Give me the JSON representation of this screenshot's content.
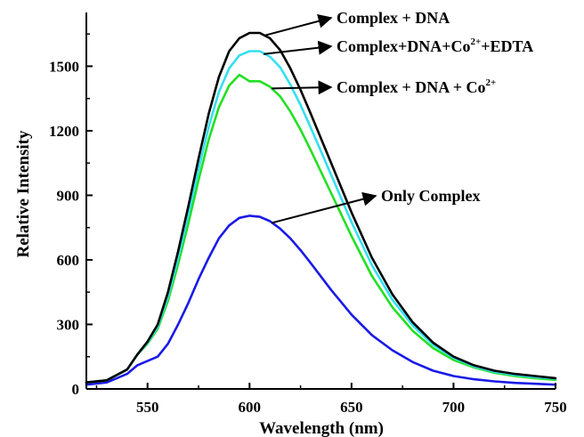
{
  "chart_data": {
    "type": "line",
    "xlabel": "Wavelength (nm)",
    "ylabel": "Relative Intensity",
    "xlim": [
      520,
      750
    ],
    "ylim": [
      0,
      1750
    ],
    "xticks": [
      550,
      600,
      650,
      700,
      750
    ],
    "yticks": [
      0,
      300,
      600,
      900,
      1200,
      1500
    ],
    "grid": false,
    "series": [
      {
        "name": "Complex + DNA",
        "color": "#000000",
        "x": [
          520,
          530,
          540,
          545,
          550,
          555,
          560,
          565,
          570,
          575,
          580,
          585,
          590,
          595,
          600,
          605,
          610,
          615,
          620,
          625,
          630,
          640,
          650,
          660,
          670,
          680,
          690,
          700,
          710,
          720,
          730,
          740,
          750
        ],
        "y": [
          30,
          40,
          90,
          160,
          220,
          300,
          450,
          640,
          850,
          1070,
          1280,
          1450,
          1570,
          1630,
          1655,
          1655,
          1630,
          1575,
          1490,
          1390,
          1280,
          1050,
          820,
          610,
          440,
          310,
          215,
          150,
          110,
          85,
          70,
          60,
          50
        ]
      },
      {
        "name": "Complex+DNA+Co2++EDTA",
        "color": "#33E0F0",
        "x": [
          520,
          530,
          540,
          545,
          550,
          555,
          560,
          565,
          570,
          575,
          580,
          585,
          590,
          595,
          600,
          605,
          610,
          615,
          620,
          625,
          630,
          640,
          650,
          660,
          670,
          680,
          690,
          700,
          710,
          720,
          730,
          740,
          750
        ],
        "y": [
          30,
          40,
          90,
          160,
          215,
          290,
          430,
          610,
          810,
          1020,
          1220,
          1380,
          1490,
          1550,
          1570,
          1570,
          1545,
          1495,
          1415,
          1320,
          1215,
          995,
          775,
          575,
          415,
          295,
          205,
          145,
          105,
          80,
          65,
          55,
          48
        ]
      },
      {
        "name": "Complex + DNA + Co2+",
        "color": "#22E022",
        "x": [
          520,
          530,
          540,
          545,
          550,
          555,
          560,
          565,
          570,
          575,
          580,
          585,
          590,
          595,
          600,
          605,
          610,
          615,
          620,
          625,
          630,
          640,
          650,
          660,
          670,
          680,
          690,
          700,
          710,
          720,
          730,
          740,
          750
        ],
        "y": [
          30,
          40,
          90,
          160,
          210,
          280,
          410,
          580,
          770,
          970,
          1160,
          1310,
          1410,
          1460,
          1430,
          1430,
          1405,
          1360,
          1290,
          1205,
          1110,
          910,
          710,
          525,
          380,
          270,
          190,
          135,
          100,
          75,
          60,
          50,
          42
        ]
      },
      {
        "name": "Only Complex",
        "color": "#1A1AE6",
        "x": [
          520,
          530,
          540,
          545,
          550,
          555,
          560,
          565,
          570,
          575,
          580,
          585,
          590,
          595,
          600,
          605,
          610,
          615,
          620,
          625,
          630,
          640,
          650,
          660,
          670,
          680,
          690,
          700,
          710,
          720,
          730,
          740,
          750
        ],
        "y": [
          20,
          30,
          70,
          110,
          130,
          150,
          210,
          300,
          400,
          510,
          610,
          700,
          760,
          795,
          805,
          800,
          780,
          745,
          700,
          645,
          585,
          460,
          345,
          250,
          180,
          125,
          85,
          60,
          45,
          35,
          28,
          24,
          20
        ]
      }
    ],
    "annotations": [
      {
        "text": "Complex + DNA",
        "sup": "",
        "tail": "",
        "series": 0,
        "at_x": 606
      },
      {
        "text": "Complex+DNA+Co",
        "sup": "2+",
        "tail": "+EDTA",
        "series": 1,
        "at_x": 606
      },
      {
        "text": "Complex + DNA + Co",
        "sup": "2+",
        "tail": "",
        "series": 2,
        "at_x": 610
      },
      {
        "text": "Only Complex",
        "sup": "",
        "tail": "",
        "series": 3,
        "at_x": 610
      }
    ]
  }
}
